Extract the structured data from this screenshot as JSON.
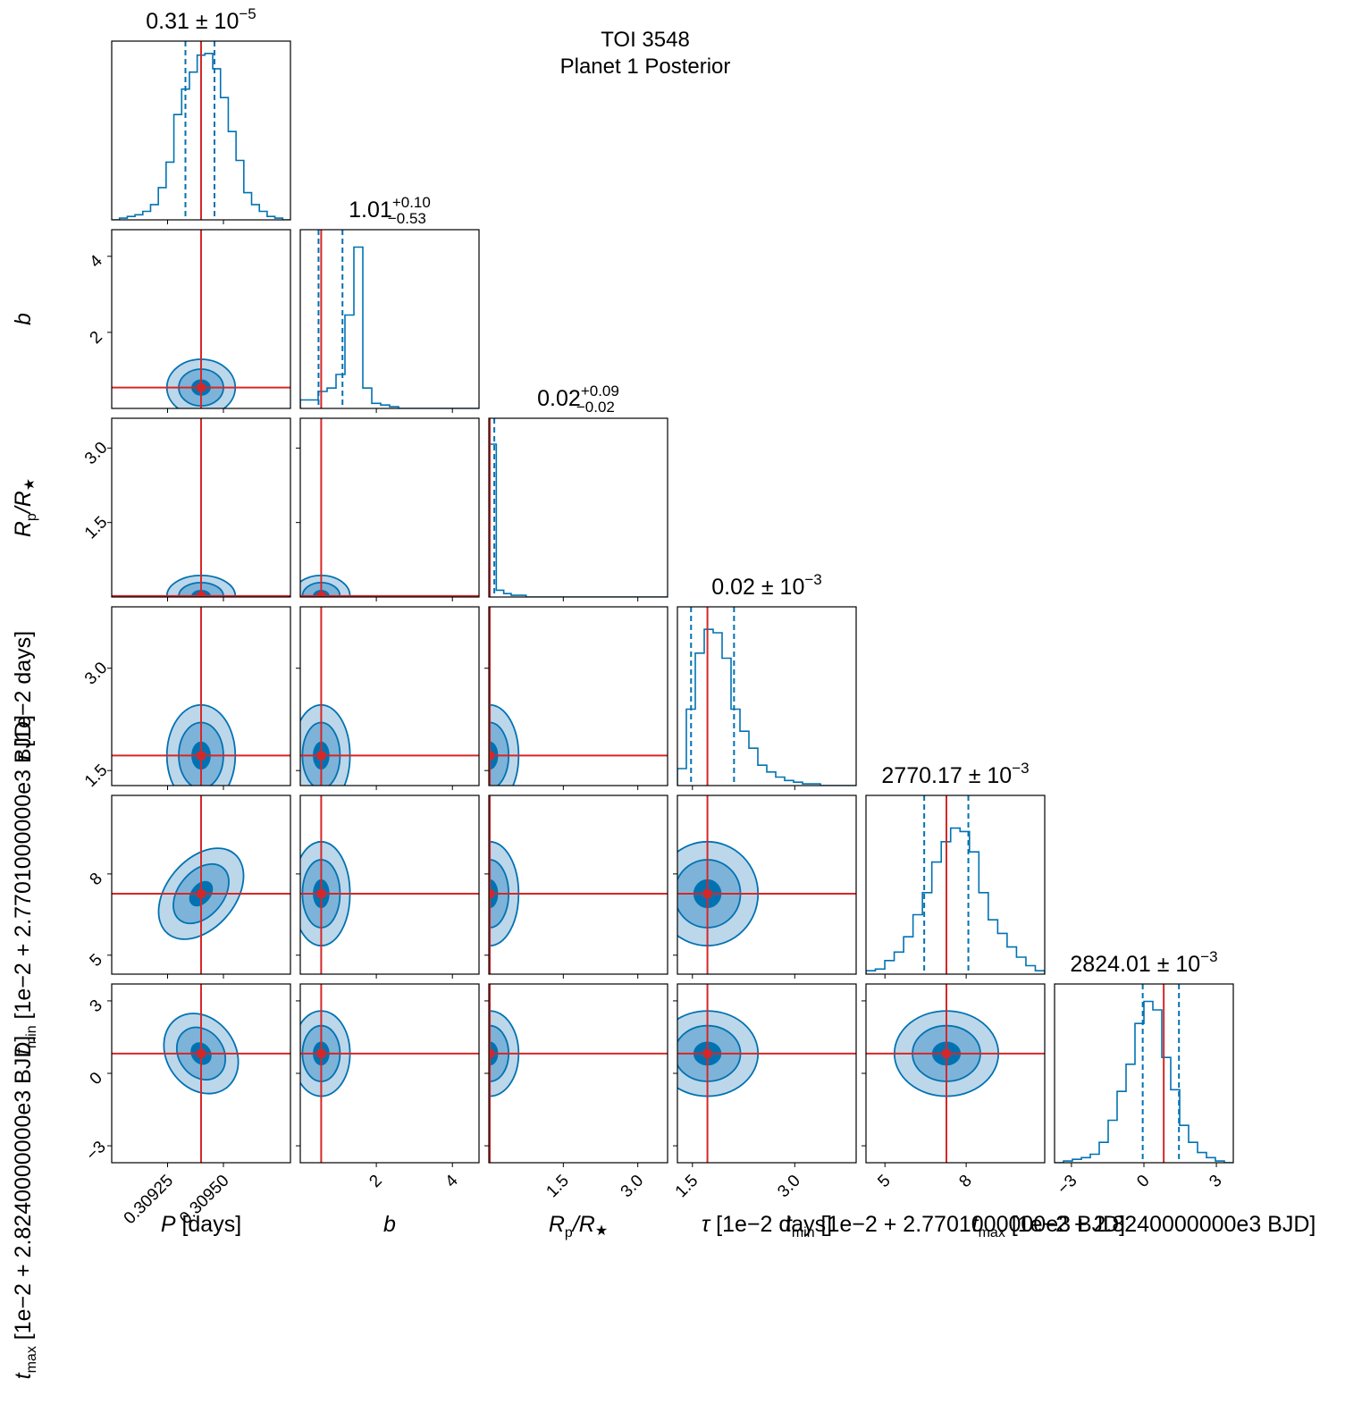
{
  "figure": {
    "title_line1": "TOI 3548",
    "title_line2": "Planet 1 Posterior"
  },
  "colors": {
    "histogram": "#0072b2",
    "fill_outer": "#bcd7ea",
    "fill_mid": "#7db3d8",
    "fill_inner": "#0072b2",
    "truth": "#d62728",
    "frame": "#000000"
  },
  "chart_data": {
    "type": "corner",
    "parameters": [
      {
        "key": "P",
        "label_main": "P",
        "label_unit": " [days]",
        "title_value": "0.31",
        "title_op": " ± ",
        "title_base": "10",
        "title_exp": "−5",
        "title_plus": "",
        "title_minus": "",
        "range": [
          0.309,
          0.3098
        ],
        "truth": 0.3094,
        "quantiles": [
          0.30933,
          0.30946
        ],
        "ticks": [
          {
            "v": 0.30925,
            "label": "0.30925"
          },
          {
            "v": 0.3095,
            "label": "0.30950"
          }
        ],
        "hist": [
          0.0,
          0.01,
          0.02,
          0.03,
          0.05,
          0.09,
          0.19,
          0.34,
          0.62,
          0.77,
          0.87,
          0.97,
          0.98,
          0.89,
          0.72,
          0.52,
          0.35,
          0.16,
          0.09,
          0.05,
          0.02,
          0.01,
          0.0
        ]
      },
      {
        "key": "b",
        "label_main": "b",
        "label_unit": "",
        "title_value": "1.01",
        "title_op": "",
        "title_base": "",
        "title_exp": "",
        "title_plus": "+0.10",
        "title_minus": "−0.53",
        "range": [
          0.0,
          4.7
        ],
        "truth": 0.55,
        "quantiles": [
          0.48,
          1.11
        ],
        "ticks": [
          {
            "v": 2,
            "label": "2"
          },
          {
            "v": 4,
            "label": "4"
          }
        ],
        "hist": [
          0.05,
          0.05,
          0.1,
          0.12,
          0.2,
          0.55,
          0.95,
          0.12,
          0.03,
          0.02,
          0.01,
          0.0,
          0.0,
          0.0,
          0.0,
          0.0,
          0.0,
          0.0,
          0.0,
          0.0
        ]
      },
      {
        "key": "Rp",
        "label_main": "R",
        "label_sub": "p",
        "label_rest": "/R",
        "label_star": "★",
        "title_value": "0.02",
        "title_op": "",
        "title_base": "",
        "title_exp": "",
        "title_plus": "+0.09",
        "title_minus": "−0.02",
        "range": [
          0.0,
          3.6
        ],
        "truth": 0.02,
        "quantiles": [
          0.01,
          0.11
        ],
        "ticks": [
          {
            "v": 1.5,
            "label": "1.5"
          },
          {
            "v": 3.0,
            "label": "3.0"
          }
        ],
        "hist": [
          0.9,
          0.04,
          0.02,
          0.01,
          0.01,
          0.0,
          0.0,
          0.0,
          0.0,
          0.0,
          0.0,
          0.0,
          0.0,
          0.0,
          0.0,
          0.0,
          0.0,
          0.0,
          0.0,
          0.0,
          0.0,
          0.0,
          0.0,
          0.0
        ]
      },
      {
        "key": "tau",
        "label_main": "τ",
        "label_unit": " [1e−2  days]",
        "title_value": "0.02",
        "title_op": " ± ",
        "title_base": "10",
        "title_exp": "−3",
        "title_plus": "",
        "title_minus": "",
        "range": [
          1.28,
          3.9
        ],
        "truth": 1.72,
        "quantiles": [
          1.48,
          2.11
        ],
        "ticks": [
          {
            "v": 1.5,
            "label": "1.5"
          },
          {
            "v": 3.0,
            "label": "3.0"
          }
        ],
        "hist": [
          0.1,
          0.45,
          0.78,
          0.92,
          0.9,
          0.75,
          0.45,
          0.32,
          0.22,
          0.12,
          0.08,
          0.05,
          0.03,
          0.02,
          0.01,
          0.01,
          0.0,
          0.0,
          0.0,
          0.0
        ]
      },
      {
        "key": "tmin",
        "label_main": "t",
        "label_sub": "min",
        "label_unit": " [1e−2 + 2.7701000000e3  BJD]",
        "title_value": "2770.17",
        "title_op": " ± ",
        "title_base": "10",
        "title_exp": "−3",
        "title_plus": "",
        "title_minus": "",
        "range": [
          4.3,
          10.9
        ],
        "truth": 7.27,
        "quantiles": [
          6.45,
          8.08
        ],
        "ticks": [
          {
            "v": 5,
            "label": "5"
          },
          {
            "v": 8,
            "label": "8"
          }
        ],
        "hist": [
          0.02,
          0.03,
          0.08,
          0.13,
          0.22,
          0.35,
          0.48,
          0.66,
          0.78,
          0.86,
          0.84,
          0.72,
          0.48,
          0.32,
          0.24,
          0.16,
          0.1,
          0.05,
          0.02
        ]
      },
      {
        "key": "tmax",
        "label_main": "t",
        "label_sub": "max",
        "label_unit": " [1e−2 + 2.8240000000e3  BJD]",
        "title_value": "2824.01",
        "title_op": " ± ",
        "title_base": "10",
        "title_exp": "−3",
        "title_plus": "",
        "title_minus": "",
        "range": [
          -3.7,
          3.7
        ],
        "truth": 0.82,
        "quantiles": [
          -0.05,
          1.45
        ],
        "ticks": [
          {
            "v": -3,
            "label": "−3"
          },
          {
            "v": 0,
            "label": "0"
          },
          {
            "v": 3,
            "label": "3"
          }
        ],
        "hist": [
          0.0,
          0.01,
          0.02,
          0.03,
          0.05,
          0.12,
          0.25,
          0.42,
          0.58,
          0.82,
          0.95,
          0.9,
          0.62,
          0.43,
          0.22,
          0.12,
          0.06,
          0.03,
          0.01,
          0.0
        ]
      }
    ],
    "y_axis_labels": [
      "b",
      "Rp/R★",
      "τ",
      "tmin",
      "tmax"
    ],
    "contour_levels": [
      "outer",
      "middle",
      "inner"
    ],
    "grid": false
  }
}
